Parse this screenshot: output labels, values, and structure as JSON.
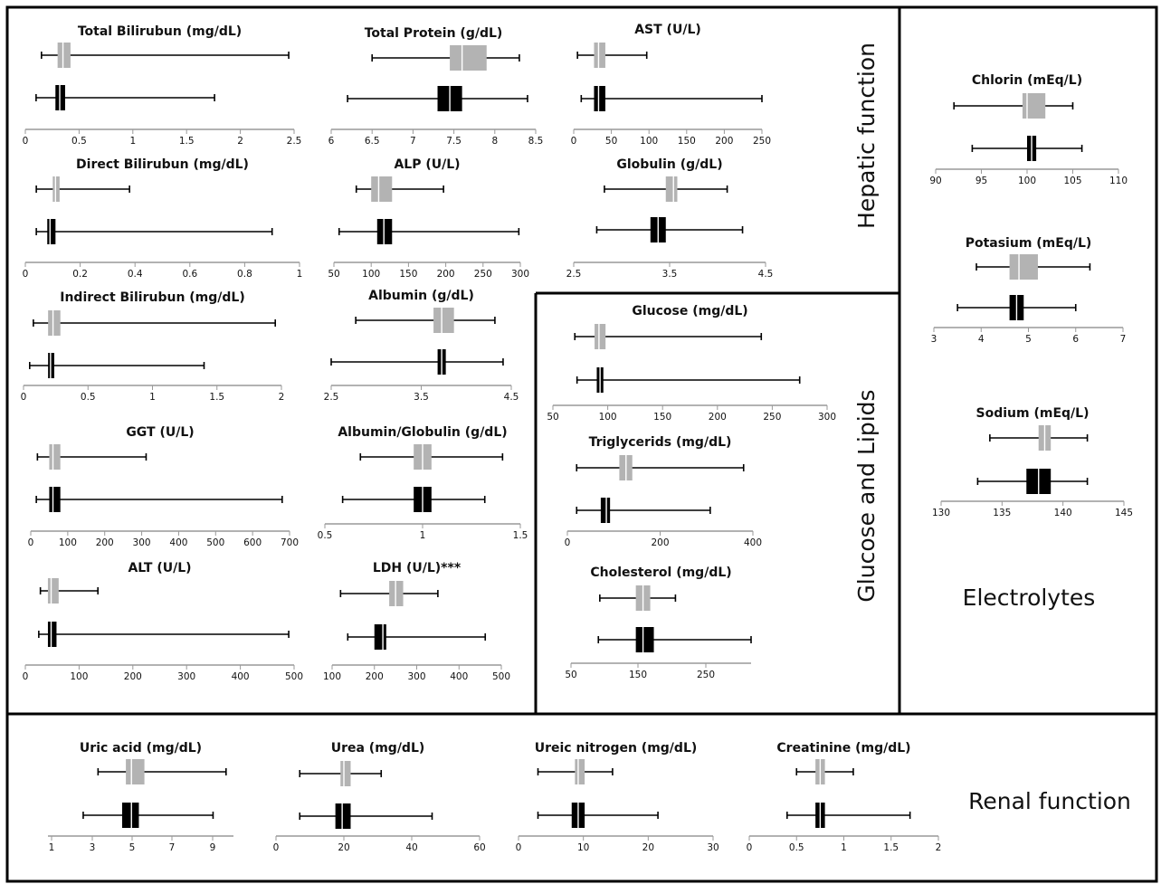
{
  "sections": {
    "hepatic": "Hepatic function",
    "glucose": "Glucose and Lipids",
    "electrolytes": "Electrolytes",
    "renal": "Renal function"
  },
  "colors": {
    "reference": "#b3b3b3",
    "patients": "#000000",
    "axis": "#999999",
    "border": "#000000"
  },
  "chart_data": [
    {
      "type": "boxplot",
      "title": "Total Bilirubun (mg/dL)",
      "section": "hepatic",
      "xlim": [
        0,
        2.5
      ],
      "ticks": [
        "0",
        "0.5",
        "1",
        "1.5",
        "2",
        "2.5"
      ],
      "series": [
        {
          "name": "",
          "color": "#b3b3b3",
          "min": 0.15,
          "q1": 0.3,
          "median": 0.35,
          "q3": 0.42,
          "max": 2.45
        },
        {
          "name": "",
          "color": "#000000",
          "min": 0.1,
          "q1": 0.28,
          "median": 0.32,
          "q3": 0.37,
          "max": 1.76
        }
      ]
    },
    {
      "type": "boxplot",
      "title": "Total Protein (g/dL)",
      "section": "hepatic",
      "xlim": [
        6,
        8.5
      ],
      "ticks": [
        "6",
        "6.5",
        "7",
        "7.5",
        "8",
        "8.5"
      ],
      "series": [
        {
          "name": "",
          "color": "#b3b3b3",
          "min": 6.5,
          "q1": 7.45,
          "median": 7.6,
          "q3": 7.9,
          "max": 8.3
        },
        {
          "name": "",
          "color": "#000000",
          "min": 6.2,
          "q1": 7.3,
          "median": 7.45,
          "q3": 7.6,
          "max": 8.4
        }
      ]
    },
    {
      "type": "boxplot",
      "title": "AST (U/L)",
      "section": "hepatic",
      "xlim": [
        0,
        250
      ],
      "ticks": [
        "0",
        "50",
        "100",
        "150",
        "200",
        "250"
      ],
      "series": [
        {
          "name": "",
          "color": "#b3b3b3",
          "min": 5,
          "q1": 27,
          "median": 33,
          "q3": 42,
          "max": 97
        },
        {
          "name": "",
          "color": "#000000",
          "min": 10,
          "q1": 27,
          "median": 33,
          "q3": 42,
          "max": 250
        }
      ]
    },
    {
      "type": "boxplot",
      "title": "Direct Bilirubun (mg/dL)",
      "section": "hepatic",
      "xlim": [
        0,
        1
      ],
      "ticks": [
        "0",
        "0.2",
        "0.4",
        "0.6",
        "0.8",
        "1"
      ],
      "series": [
        {
          "name": "",
          "color": "#b3b3b3",
          "min": 0.04,
          "q1": 0.1,
          "median": 0.11,
          "q3": 0.125,
          "max": 0.38
        },
        {
          "name": "",
          "color": "#000000",
          "min": 0.04,
          "q1": 0.08,
          "median": 0.09,
          "q3": 0.11,
          "max": 0.9
        }
      ]
    },
    {
      "type": "boxplot",
      "title": "ALP (U/L)",
      "section": "hepatic",
      "xlim": [
        50,
        300
      ],
      "ticks": [
        "50",
        "100",
        "150",
        "200",
        "250",
        "300"
      ],
      "series": [
        {
          "name": "",
          "color": "#b3b3b3",
          "min": 80,
          "q1": 100,
          "median": 110,
          "q3": 128,
          "max": 197
        },
        {
          "name": "",
          "color": "#000000",
          "min": 57,
          "q1": 108,
          "median": 117,
          "q3": 128,
          "max": 298
        }
      ]
    },
    {
      "type": "boxplot",
      "title": "Globulin (g/dL)",
      "section": "hepatic",
      "xlim": [
        2.5,
        5
      ],
      "ticks": [
        "2.5",
        "3.5",
        "4.5"
      ],
      "series": [
        {
          "name": "",
          "color": "#b3b3b3",
          "min": 2.9,
          "q1": 3.7,
          "median": 3.8,
          "q3": 3.85,
          "max": 4.5
        },
        {
          "name": "",
          "color": "#000000",
          "min": 2.8,
          "q1": 3.5,
          "median": 3.6,
          "q3": 3.7,
          "max": 4.7
        }
      ]
    },
    {
      "type": "boxplot",
      "title": "Indirect Bilirubun  (mg/dL)",
      "section": "hepatic",
      "xlim": [
        0,
        2.1
      ],
      "ticks": [
        "0",
        "0.5",
        "1",
        "1.5",
        "2"
      ],
      "series": [
        {
          "name": "",
          "color": "#b3b3b3",
          "min": 0.08,
          "q1": 0.2,
          "median": 0.24,
          "q3": 0.3,
          "max": 2.05
        },
        {
          "name": "",
          "color": "#000000",
          "min": 0.05,
          "q1": 0.2,
          "median": 0.22,
          "q3": 0.25,
          "max": 1.47
        }
      ]
    },
    {
      "type": "boxplot",
      "title": "Albumin (g/dL)",
      "section": "hepatic",
      "xlim": [
        2.5,
        4.7
      ],
      "ticks": [
        "2.5",
        "3.5",
        "4.5"
      ],
      "series": [
        {
          "name": "",
          "color": "#b3b3b3",
          "min": 2.8,
          "q1": 3.75,
          "median": 3.85,
          "q3": 4.0,
          "max": 4.5
        },
        {
          "name": "",
          "color": "#000000",
          "min": 2.5,
          "q1": 3.8,
          "median": 3.85,
          "q3": 3.9,
          "max": 4.6
        }
      ]
    },
    {
      "type": "boxplot",
      "title": "GGT (U/L)",
      "section": "hepatic",
      "xlim": [
        0,
        700
      ],
      "ticks": [
        "0",
        "100",
        "200",
        "300",
        "400",
        "500",
        "600",
        "700"
      ],
      "series": [
        {
          "name": "",
          "color": "#b3b3b3",
          "min": 18,
          "q1": 50,
          "median": 60,
          "q3": 80,
          "max": 312
        },
        {
          "name": "",
          "color": "#000000",
          "min": 15,
          "q1": 50,
          "median": 60,
          "q3": 80,
          "max": 680
        }
      ]
    },
    {
      "type": "boxplot",
      "title": "Albumin/Globulin (g/dL)",
      "section": "hepatic",
      "xlim": [
        0.5,
        1.6
      ],
      "ticks": [
        "0.5",
        "1",
        "1.5"
      ],
      "series": [
        {
          "name": "",
          "color": "#b3b3b3",
          "min": 0.7,
          "q1": 1.0,
          "median": 1.05,
          "q3": 1.1,
          "max": 1.5
        },
        {
          "name": "",
          "color": "#000000",
          "min": 0.6,
          "q1": 1.0,
          "median": 1.05,
          "q3": 1.1,
          "max": 1.4
        }
      ]
    },
    {
      "type": "boxplot",
      "title": "ALT (U/L)",
      "section": "hepatic",
      "xlim": [
        0,
        500
      ],
      "ticks": [
        "0",
        "100",
        "200",
        "300",
        "400",
        "500"
      ],
      "series": [
        {
          "name": "",
          "color": "#b3b3b3",
          "min": 28,
          "q1": 42,
          "median": 48,
          "q3": 62,
          "max": 135
        },
        {
          "name": "",
          "color": "#000000",
          "min": 25,
          "q1": 42,
          "median": 48,
          "q3": 58,
          "max": 490
        }
      ]
    },
    {
      "type": "boxplot",
      "title": "LDH (U/L)***",
      "section": "hepatic",
      "xlim": [
        100,
        500
      ],
      "ticks": [
        "100",
        "200",
        "300",
        "400",
        "500"
      ],
      "series": [
        {
          "name": "",
          "color": "#b3b3b3",
          "min": 120,
          "q1": 235,
          "median": 250,
          "q3": 268,
          "max": 350
        },
        {
          "name": "",
          "color": "#000000",
          "min": 137,
          "q1": 200,
          "median": 220,
          "q3": 228,
          "max": 462
        }
      ]
    },
    {
      "type": "boxplot",
      "title": "Glucose (mg/dL)",
      "section": "glucose",
      "xlim": [
        50,
        300
      ],
      "ticks": [
        "50",
        "100",
        "150",
        "200",
        "250",
        "300"
      ],
      "series": [
        {
          "name": "",
          "color": "#b3b3b3",
          "min": 70,
          "q1": 88,
          "median": 92,
          "q3": 98,
          "max": 240
        },
        {
          "name": "",
          "color": "#000000",
          "min": 72,
          "q1": 90,
          "median": 93,
          "q3": 96,
          "max": 275
        }
      ]
    },
    {
      "type": "boxplot",
      "title": "Triglycerids (mg/dL)",
      "section": "glucose",
      "xlim": [
        0,
        500
      ],
      "ticks": [
        "0",
        "200",
        "400"
      ],
      "series": [
        {
          "name": "",
          "color": "#b3b3b3",
          "min": 25,
          "q1": 140,
          "median": 158,
          "q3": 175,
          "max": 475
        },
        {
          "name": "",
          "color": "#000000",
          "min": 25,
          "q1": 90,
          "median": 105,
          "q3": 115,
          "max": 385
        }
      ]
    },
    {
      "type": "boxplot",
      "title": "Cholesterol (mg/dL)",
      "section": "glucose",
      "xlim": [
        50,
        300
      ],
      "ticks": [
        "50",
        "150",
        "250"
      ],
      "series": [
        {
          "name": "",
          "color": "#b3b3b3",
          "min": 90,
          "q1": 140,
          "median": 150,
          "q3": 160,
          "max": 195
        },
        {
          "name": "",
          "color": "#000000",
          "min": 88,
          "q1": 140,
          "median": 150,
          "q3": 165,
          "max": 300
        }
      ]
    },
    {
      "type": "boxplot",
      "title": "Chlorin (mEq/L)",
      "section": "electrolytes",
      "xlim": [
        90,
        110
      ],
      "ticks": [
        "90",
        "95",
        "100",
        "105",
        "110"
      ],
      "series": [
        {
          "name": "",
          "color": "#b3b3b3",
          "min": 92,
          "q1": 99.5,
          "median": 100,
          "q3": 102,
          "max": 105
        },
        {
          "name": "",
          "color": "#000000",
          "min": 94,
          "q1": 100,
          "median": 100.5,
          "q3": 101,
          "max": 106
        }
      ]
    },
    {
      "type": "boxplot",
      "title": "Potasium (mEq/L)",
      "section": "electrolytes",
      "xlim": [
        3,
        7
      ],
      "ticks": [
        "3",
        "4",
        "5",
        "6",
        "7"
      ],
      "series": [
        {
          "name": "",
          "color": "#b3b3b3",
          "min": 3.9,
          "q1": 4.6,
          "median": 4.8,
          "q3": 5.2,
          "max": 6.3
        },
        {
          "name": "",
          "color": "#000000",
          "min": 3.5,
          "q1": 4.6,
          "median": 4.75,
          "q3": 4.9,
          "max": 6.0
        }
      ]
    },
    {
      "type": "boxplot",
      "title": "Sodium (mEq/L)",
      "section": "electrolytes",
      "xlim": [
        130,
        145
      ],
      "ticks": [
        "130",
        "135",
        "140",
        "145"
      ],
      "series": [
        {
          "name": "",
          "color": "#b3b3b3",
          "min": 134,
          "q1": 138,
          "median": 138.5,
          "q3": 139,
          "max": 142
        },
        {
          "name": "",
          "color": "#000000",
          "min": 133,
          "q1": 137,
          "median": 138,
          "q3": 139,
          "max": 142
        }
      ]
    },
    {
      "type": "boxplot",
      "title": "Uric acid (mg/dL)",
      "section": "renal",
      "xlim": [
        0,
        10
      ],
      "ticks": [
        "1",
        "3",
        "5",
        "7",
        "9"
      ],
      "series": [
        {
          "name": "",
          "color": "#b3b3b3",
          "min": 2.7,
          "q1": 4.2,
          "median": 4.5,
          "q3": 5.2,
          "max": 9.6
        },
        {
          "name": "",
          "color": "#000000",
          "min": 1.9,
          "q1": 4.0,
          "median": 4.5,
          "q3": 4.9,
          "max": 8.9
        }
      ]
    },
    {
      "type": "boxplot",
      "title": "Urea (mg/dL)",
      "section": "renal",
      "xlim": [
        0,
        60
      ],
      "ticks": [
        "0",
        "20",
        "40",
        "60"
      ],
      "series": [
        {
          "name": "",
          "color": "#b3b3b3",
          "min": 7,
          "q1": 19,
          "median": 20,
          "q3": 22,
          "max": 31
        },
        {
          "name": "",
          "color": "#000000",
          "min": 7,
          "q1": 17.5,
          "median": 19.5,
          "q3": 22,
          "max": 46
        }
      ]
    },
    {
      "type": "boxplot",
      "title": "Ureic nitrogen (mg/dL)",
      "section": "renal",
      "xlim": [
        0,
        30
      ],
      "ticks": [
        "0",
        "10",
        "20",
        "30"
      ],
      "series": [
        {
          "name": "",
          "color": "#b3b3b3",
          "min": 3,
          "q1": 8.7,
          "median": 9.2,
          "q3": 10.2,
          "max": 14.5
        },
        {
          "name": "",
          "color": "#000000",
          "min": 3,
          "q1": 8.2,
          "median": 9.2,
          "q3": 10.2,
          "max": 21.5
        }
      ]
    },
    {
      "type": "boxplot",
      "title": "Creatinine (mg/dL)",
      "section": "renal",
      "xlim": [
        0,
        2
      ],
      "ticks": [
        "0",
        "0.5",
        "1",
        "1.5",
        "2"
      ],
      "series": [
        {
          "name": "",
          "color": "#b3b3b3",
          "min": 0.5,
          "q1": 0.7,
          "median": 0.75,
          "q3": 0.8,
          "max": 1.1
        },
        {
          "name": "",
          "color": "#000000",
          "min": 0.4,
          "q1": 0.7,
          "median": 0.75,
          "q3": 0.8,
          "max": 1.7
        }
      ]
    }
  ]
}
